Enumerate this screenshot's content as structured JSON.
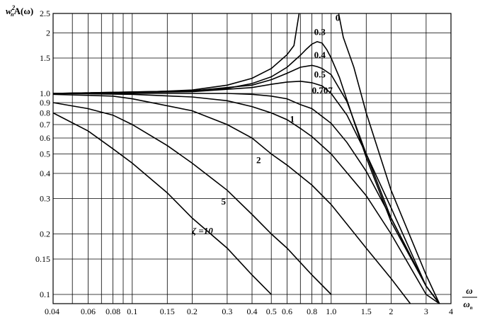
{
  "chart_data": {
    "type": "line",
    "ylabel": "w²ₙA(ω)",
    "ylabel_parts": {
      "base": "w",
      "sup": "2",
      "sub": "n",
      "rest": "A(ω)"
    },
    "xlabel": "ω/ωₙ",
    "xlabel_parts": {
      "num": "ω",
      "den": "ω",
      "den_sub": "n"
    },
    "x_scale": "log",
    "y_scale": "log",
    "xlim": [
      0.04,
      4
    ],
    "ylim": [
      0.09,
      2.5
    ],
    "grid": true,
    "x_ticks": [
      0.04,
      0.06,
      0.08,
      0.1,
      0.15,
      0.2,
      0.3,
      0.4,
      0.5,
      0.6,
      0.8,
      1.0,
      1.5,
      2,
      3,
      4
    ],
    "x_tick_labels": [
      "0.04",
      "0.06",
      "0.08",
      "0.1",
      "0.15",
      "0.2",
      "0.3",
      "0.4",
      "0.5",
      "0.6",
      "0.8",
      "1.0",
      "1.5",
      "2",
      "3",
      "4"
    ],
    "x_gridlines": [
      0.05,
      0.06,
      0.07,
      0.08,
      0.09,
      0.1,
      0.15,
      0.2,
      0.3,
      0.4,
      0.5,
      0.6,
      0.7,
      0.8,
      0.9,
      1.0,
      1.5,
      2,
      3
    ],
    "y_ticks": [
      0.1,
      0.15,
      0.2,
      0.3,
      0.4,
      0.5,
      0.6,
      0.7,
      0.8,
      0.9,
      1.0,
      1.5,
      2,
      2.5
    ],
    "y_tick_labels": [
      "0.1",
      "0.15",
      "0.2",
      "0.3",
      "0.4",
      "0.5",
      "0.6",
      "0.7",
      "0.8",
      "0.9",
      "1.0",
      "1.5",
      "2",
      "2.5"
    ],
    "y_gridlines": [
      0.1,
      0.15,
      0.2,
      0.3,
      0.4,
      0.5,
      0.6,
      0.7,
      0.8,
      0.9,
      1.0,
      1.5,
      2
    ],
    "series": [
      {
        "name": "0",
        "x": [
          0.04,
          0.1,
          0.2,
          0.3,
          0.4,
          0.5,
          0.6,
          0.65,
          0.69
        ],
        "y": [
          1.0,
          1.01,
          1.04,
          1.1,
          1.19,
          1.33,
          1.56,
          1.73,
          2.5
        ]
      },
      {
        "name": "0",
        "x": [
          1.09,
          1.15,
          1.3,
          1.5,
          2.0,
          3.0,
          3.5
        ],
        "y": [
          2.5,
          1.9,
          1.35,
          0.8,
          0.33,
          0.125,
          0.09
        ]
      },
      {
        "name": "0.3",
        "x": [
          0.04,
          0.2,
          0.3,
          0.4,
          0.5,
          0.6,
          0.7,
          0.75,
          0.8,
          0.85,
          0.9,
          0.95,
          1.0,
          1.1,
          1.3,
          1.5,
          2.0,
          3.0,
          3.5
        ],
        "y": [
          1.0,
          1.03,
          1.06,
          1.12,
          1.21,
          1.35,
          1.55,
          1.66,
          1.76,
          1.81,
          1.78,
          1.65,
          1.5,
          1.2,
          0.73,
          0.48,
          0.23,
          0.11,
          0.09
        ]
      },
      {
        "name": "0.4",
        "x": [
          0.04,
          0.2,
          0.4,
          0.5,
          0.6,
          0.7,
          0.8,
          0.85,
          0.9,
          1.0,
          1.2,
          1.5,
          2.0,
          3.0,
          3.5
        ],
        "y": [
          1.0,
          1.03,
          1.1,
          1.17,
          1.26,
          1.35,
          1.38,
          1.36,
          1.33,
          1.24,
          0.91,
          0.5,
          0.24,
          0.11,
          0.09
        ]
      },
      {
        "name": "0.5",
        "x": [
          0.04,
          0.2,
          0.4,
          0.5,
          0.6,
          0.7,
          0.8,
          0.9,
          1.0,
          1.2,
          1.5,
          2.0,
          3.0,
          3.5
        ],
        "y": [
          1.0,
          1.02,
          1.07,
          1.11,
          1.14,
          1.15,
          1.13,
          1.09,
          1.0,
          0.78,
          0.5,
          0.27,
          0.11,
          0.09
        ]
      },
      {
        "name": "0.707",
        "x": [
          0.04,
          0.1,
          0.2,
          0.3,
          0.4,
          0.5,
          0.6,
          0.7,
          0.8,
          1.0,
          1.2,
          1.5,
          2.0,
          3.0,
          3.5
        ],
        "y": [
          1.0,
          1.0,
          1.0,
          1.0,
          0.99,
          0.97,
          0.94,
          0.88,
          0.84,
          0.71,
          0.57,
          0.41,
          0.24,
          0.11,
          0.08
        ]
      },
      {
        "name": "1",
        "x": [
          0.04,
          0.1,
          0.2,
          0.3,
          0.4,
          0.5,
          0.6,
          0.7,
          0.8,
          1.0,
          1.5,
          2.0,
          3.0,
          3.5
        ],
        "y": [
          1.0,
          0.99,
          0.96,
          0.92,
          0.86,
          0.8,
          0.74,
          0.67,
          0.61,
          0.5,
          0.31,
          0.2,
          0.1,
          0.077
        ]
      },
      {
        "name": "2",
        "x": [
          0.04,
          0.08,
          0.1,
          0.2,
          0.3,
          0.4,
          0.5,
          0.6,
          0.8,
          1.0,
          1.5,
          2.0,
          2.5
        ],
        "y": [
          0.99,
          0.97,
          0.94,
          0.82,
          0.7,
          0.6,
          0.5,
          0.44,
          0.35,
          0.28,
          0.17,
          0.12,
          0.09
        ]
      },
      {
        "name": "5",
        "x": [
          0.04,
          0.06,
          0.08,
          0.1,
          0.15,
          0.2,
          0.3,
          0.4,
          0.5,
          0.6,
          0.8,
          1.0
        ],
        "y": [
          0.9,
          0.84,
          0.78,
          0.7,
          0.55,
          0.45,
          0.33,
          0.25,
          0.2,
          0.17,
          0.125,
          0.1
        ]
      },
      {
        "name": "ζ=10",
        "x": [
          0.04,
          0.06,
          0.08,
          0.1,
          0.15,
          0.2,
          0.3,
          0.4,
          0.5
        ],
        "y": [
          0.8,
          0.65,
          0.53,
          0.45,
          0.32,
          0.24,
          0.17,
          0.125,
          0.1
        ]
      }
    ],
    "annotations": [
      {
        "text": "0",
        "x": 1.05,
        "y": 2.3
      },
      {
        "text": "0.3",
        "x": 0.82,
        "y": 1.95
      },
      {
        "text": "0.4",
        "x": 0.82,
        "y": 1.5
      },
      {
        "text": "0.5",
        "x": 0.82,
        "y": 1.2
      },
      {
        "text": "0.707",
        "x": 0.8,
        "y": 1.0
      },
      {
        "text": "1",
        "x": 0.62,
        "y": 0.72
      },
      {
        "text": "2",
        "x": 0.42,
        "y": 0.45
      },
      {
        "text": "5",
        "x": 0.28,
        "y": 0.28
      },
      {
        "text": "ζ =10",
        "x": 0.2,
        "y": 0.2
      }
    ]
  }
}
